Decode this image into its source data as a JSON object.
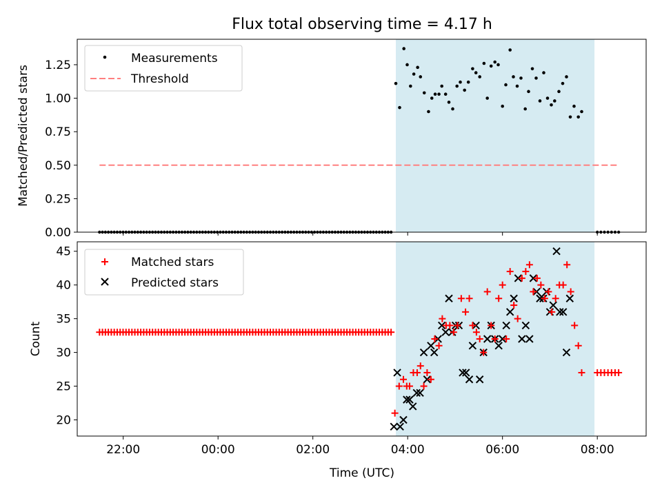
{
  "title": "Flux total observing time = 4.17 h",
  "chart_data": [
    {
      "type": "scatter",
      "name": "ratio",
      "ylabel": "Matched/Predicted stars",
      "ylim": [
        0,
        1.44
      ],
      "yticks": [
        0.0,
        0.25,
        0.5,
        0.75,
        1.0,
        1.25
      ],
      "ytick_labels": [
        "0.00",
        "0.25",
        "0.50",
        "0.75",
        "1.00",
        "1.25"
      ],
      "xlim": [
        -2.97,
        9.03
      ],
      "xticks": [
        -2,
        0,
        2,
        4,
        6,
        8
      ],
      "observing_window": [
        3.75,
        7.94
      ],
      "threshold": {
        "value": 0.5,
        "x_range": [
          -2.5,
          8.45
        ],
        "label": "Threshold"
      },
      "legend": {
        "position": "top-left",
        "measurements": "Measurements",
        "threshold": "Threshold"
      },
      "zero_segments": [
        {
          "x0": -2.5,
          "x1": 3.65,
          "n": 100
        },
        {
          "x0": 8.0,
          "x1": 8.45,
          "n": 7
        }
      ],
      "measurements": [
        [
          3.75,
          1.11
        ],
        [
          3.83,
          0.93
        ],
        [
          3.92,
          1.37
        ],
        [
          3.99,
          1.25
        ],
        [
          4.06,
          1.09
        ],
        [
          4.13,
          1.18
        ],
        [
          4.21,
          1.23
        ],
        [
          4.27,
          1.16
        ],
        [
          4.35,
          1.04
        ],
        [
          4.44,
          0.9
        ],
        [
          4.51,
          1.0
        ],
        [
          4.58,
          1.03
        ],
        [
          4.66,
          1.03
        ],
        [
          4.72,
          1.09
        ],
        [
          4.8,
          1.03
        ],
        [
          4.87,
          0.97
        ],
        [
          4.95,
          0.92
        ],
        [
          5.04,
          1.09
        ],
        [
          5.11,
          1.12
        ],
        [
          5.2,
          1.06
        ],
        [
          5.28,
          1.12
        ],
        [
          5.37,
          1.22
        ],
        [
          5.44,
          1.19
        ],
        [
          5.52,
          1.16
        ],
        [
          5.61,
          1.26
        ],
        [
          5.68,
          1.0
        ],
        [
          5.76,
          1.24
        ],
        [
          5.84,
          1.27
        ],
        [
          5.91,
          1.25
        ],
        [
          6.0,
          0.94
        ],
        [
          6.07,
          1.1
        ],
        [
          6.16,
          1.36
        ],
        [
          6.23,
          1.16
        ],
        [
          6.31,
          1.09
        ],
        [
          6.39,
          1.15
        ],
        [
          6.48,
          0.92
        ],
        [
          6.55,
          1.05
        ],
        [
          6.63,
          1.22
        ],
        [
          6.71,
          1.15
        ],
        [
          6.79,
          0.98
        ],
        [
          6.87,
          1.19
        ],
        [
          6.95,
          1.0
        ],
        [
          7.03,
          0.95
        ],
        [
          7.1,
          0.98
        ],
        [
          7.19,
          1.05
        ],
        [
          7.27,
          1.11
        ],
        [
          7.35,
          1.16
        ],
        [
          7.43,
          0.86
        ],
        [
          7.51,
          0.94
        ],
        [
          7.6,
          0.86
        ],
        [
          7.67,
          0.9
        ]
      ]
    },
    {
      "type": "scatter",
      "name": "counts",
      "ylabel": "Count",
      "xlabel": "Time (UTC)",
      "ylim": [
        17.6,
        46.4
      ],
      "yticks": [
        20,
        25,
        30,
        35,
        40,
        45
      ],
      "ytick_labels": [
        "20",
        "25",
        "30",
        "35",
        "40",
        "45"
      ],
      "xlim": [
        -2.97,
        9.03
      ],
      "xticks": [
        -2,
        0,
        2,
        4,
        6,
        8
      ],
      "xtick_labels": [
        "22:00",
        "00:00",
        "02:00",
        "04:00",
        "06:00",
        "08:00"
      ],
      "observing_window": [
        3.75,
        7.94
      ],
      "legend": {
        "position": "top-left",
        "matched": "Matched stars",
        "predicted": "Predicted stars"
      },
      "constant_segments": [
        {
          "x0": -2.5,
          "x1": 3.65,
          "n": 100,
          "value": 33
        },
        {
          "x0": 8.0,
          "x1": 8.45,
          "n": 7,
          "value": 27
        }
      ],
      "matched": [
        [
          3.73,
          21
        ],
        [
          3.82,
          25
        ],
        [
          3.91,
          26
        ],
        [
          3.98,
          25
        ],
        [
          4.04,
          25
        ],
        [
          4.12,
          27
        ],
        [
          4.2,
          27
        ],
        [
          4.27,
          28
        ],
        [
          4.34,
          25
        ],
        [
          4.41,
          27
        ],
        [
          4.49,
          26
        ],
        [
          4.57,
          32
        ],
        [
          4.66,
          31
        ],
        [
          4.73,
          35
        ],
        [
          4.81,
          34
        ],
        [
          4.89,
          34
        ],
        [
          4.97,
          33
        ],
        [
          5.05,
          34
        ],
        [
          5.13,
          38
        ],
        [
          5.22,
          36
        ],
        [
          5.3,
          38
        ],
        [
          5.37,
          34
        ],
        [
          5.45,
          33
        ],
        [
          5.52,
          32
        ],
        [
          5.6,
          30
        ],
        [
          5.68,
          39
        ],
        [
          5.76,
          34
        ],
        [
          5.84,
          32
        ],
        [
          5.92,
          38
        ],
        [
          6.0,
          40
        ],
        [
          6.08,
          32
        ],
        [
          6.16,
          42
        ],
        [
          6.24,
          37
        ],
        [
          6.32,
          35
        ],
        [
          6.41,
          41
        ],
        [
          6.49,
          42
        ],
        [
          6.57,
          43
        ],
        [
          6.65,
          39
        ],
        [
          6.73,
          41
        ],
        [
          6.81,
          40
        ],
        [
          6.89,
          38
        ],
        [
          6.97,
          39
        ],
        [
          7.04,
          36
        ],
        [
          7.12,
          38
        ],
        [
          7.2,
          40
        ],
        [
          7.28,
          40
        ],
        [
          7.36,
          43
        ],
        [
          7.44,
          39
        ],
        [
          7.52,
          34
        ],
        [
          7.6,
          31
        ],
        [
          7.67,
          27
        ]
      ],
      "predicted": [
        [
          3.71,
          19
        ],
        [
          3.78,
          27
        ],
        [
          3.84,
          19
        ],
        [
          3.91,
          20
        ],
        [
          3.98,
          23
        ],
        [
          4.04,
          23
        ],
        [
          4.11,
          22
        ],
        [
          4.19,
          24
        ],
        [
          4.26,
          24
        ],
        [
          4.34,
          30
        ],
        [
          4.41,
          26
        ],
        [
          4.49,
          31
        ],
        [
          4.56,
          30
        ],
        [
          4.64,
          32
        ],
        [
          4.72,
          34
        ],
        [
          4.8,
          33
        ],
        [
          4.87,
          38
        ],
        [
          4.94,
          33
        ],
        [
          5.01,
          34
        ],
        [
          5.08,
          34
        ],
        [
          5.16,
          27
        ],
        [
          5.23,
          27
        ],
        [
          5.3,
          26
        ],
        [
          5.37,
          31
        ],
        [
          5.44,
          34
        ],
        [
          5.52,
          26
        ],
        [
          5.6,
          30
        ],
        [
          5.68,
          32
        ],
        [
          5.76,
          34
        ],
        [
          5.84,
          32
        ],
        [
          5.92,
          31
        ],
        [
          6.0,
          32
        ],
        [
          6.08,
          34
        ],
        [
          6.16,
          36
        ],
        [
          6.24,
          38
        ],
        [
          6.33,
          41
        ],
        [
          6.41,
          32
        ],
        [
          6.49,
          34
        ],
        [
          6.57,
          32
        ],
        [
          6.65,
          41
        ],
        [
          6.72,
          39
        ],
        [
          6.79,
          38
        ],
        [
          6.86,
          38
        ],
        [
          6.93,
          39
        ],
        [
          7.0,
          36
        ],
        [
          7.07,
          37
        ],
        [
          7.14,
          45
        ],
        [
          7.21,
          36
        ],
        [
          7.28,
          36
        ],
        [
          7.35,
          30
        ],
        [
          7.42,
          38
        ]
      ]
    }
  ],
  "colors": {
    "measurements": "#000000",
    "threshold": "#ff7f7f",
    "matched": "#ff0000",
    "predicted": "#000000",
    "window": "#add8e6"
  }
}
